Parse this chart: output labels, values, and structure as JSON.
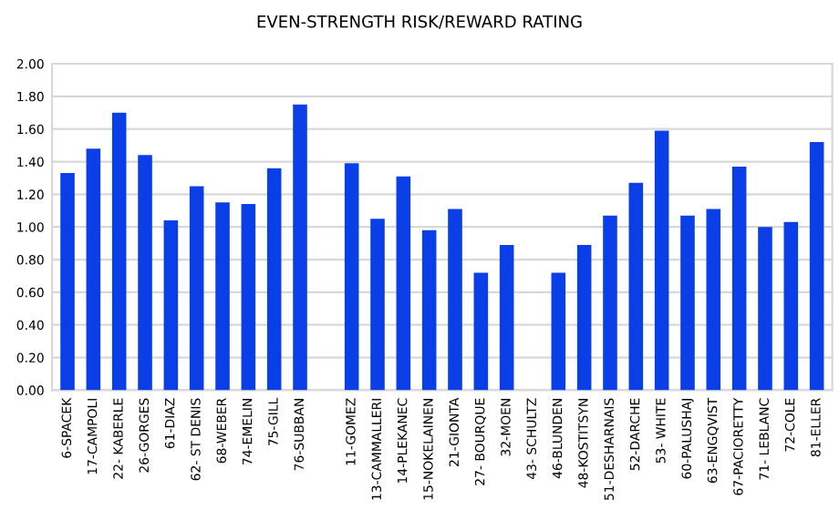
{
  "chart_data": {
    "type": "bar",
    "title": "EVEN-STRENGTH RISK/REWARD RATING",
    "categories": [
      "6-SPACEK",
      "17-CAMPOLI",
      "22- KABERLE",
      "26-GORGES",
      "61-DIAZ",
      "62- ST DENIS",
      "68-WEBER",
      "74-EMELIN",
      "75-GILL",
      "76-SUBBAN",
      null,
      "11-GOMEZ",
      "13-CAMMALLERI",
      "14-PLEKANEC",
      "15-NOKELAINEN",
      "21-GIONTA",
      "27- BOURQUE",
      "32-MOEN",
      "43- SCHULTZ",
      "46-BLUNDEN",
      "48-KOSTITSYN",
      "51-DESHARNAIS",
      "52-DARCHE",
      "53- WHITE",
      "60-PALUSHAJ",
      "63-ENGQVIST",
      "67-PACIORETTY",
      "71- LEBLANC",
      "72-COLE",
      "81-ELLER"
    ],
    "values": [
      1.33,
      1.48,
      1.7,
      1.44,
      1.04,
      1.25,
      1.15,
      1.14,
      1.36,
      1.75,
      null,
      1.39,
      1.05,
      1.31,
      0.98,
      1.11,
      0.72,
      0.89,
      null,
      0.72,
      0.89,
      1.07,
      1.27,
      1.59,
      1.07,
      1.11,
      1.37,
      1.0,
      1.03,
      1.52
    ],
    "color": "#0a3ee6",
    "ylim": [
      0,
      2
    ],
    "yticks": [
      {
        "value": 0,
        "label": "0.00"
      },
      {
        "value": 0.2,
        "label": "0.20"
      },
      {
        "value": 0.4,
        "label": "0.40"
      },
      {
        "value": 0.6,
        "label": "0.60"
      },
      {
        "value": 0.8,
        "label": "0.80"
      },
      {
        "value": 1,
        "label": "1.00"
      },
      {
        "value": 1.2,
        "label": "1.20"
      },
      {
        "value": 1.4,
        "label": "1.40"
      },
      {
        "value": 1.6,
        "label": "1.60"
      },
      {
        "value": 1.8,
        "label": "1.80"
      },
      {
        "value": 2,
        "label": "2.00"
      }
    ],
    "grid": "y",
    "legend": false
  }
}
